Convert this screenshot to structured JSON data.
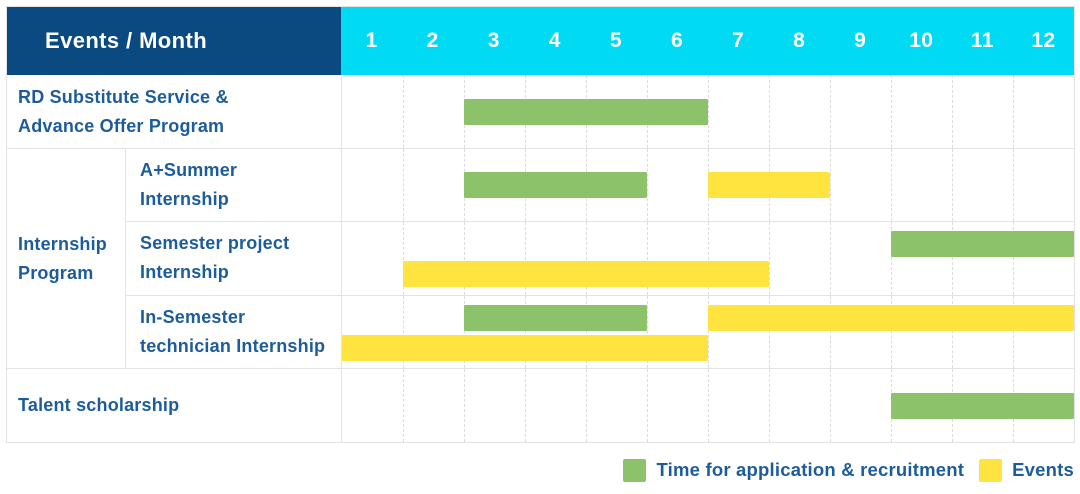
{
  "header": {
    "corner_label": "Events / Month",
    "months": [
      "1",
      "2",
      "3",
      "4",
      "5",
      "6",
      "7",
      "8",
      "9",
      "10",
      "11",
      "12"
    ]
  },
  "colors": {
    "navy": "#0B4A80",
    "cyan": "#00DAF2",
    "green": "#8CC36A",
    "yellow": "#FFE33E",
    "label_blue": "#1D5C9C",
    "grid": "#E3E3E3"
  },
  "group": {
    "label_lines": [
      "Internship",
      "Program"
    ]
  },
  "rows": [
    {
      "label_lines": [
        "RD Substitute Service &",
        "Advance Offer Program"
      ],
      "bars": [
        {
          "color": "green",
          "start": 3,
          "end": 6,
          "line": "center"
        }
      ]
    },
    {
      "label_lines": [
        "A+Summer",
        "Internship"
      ],
      "group": "Internship Program",
      "bars": [
        {
          "color": "green",
          "start": 3,
          "end": 5,
          "line": "center"
        },
        {
          "color": "yellow",
          "start": 7,
          "end": 8,
          "line": "center"
        }
      ]
    },
    {
      "label_lines": [
        "Semester project",
        "Internship"
      ],
      "group": "Internship Program",
      "bars": [
        {
          "color": "green",
          "start": 10,
          "end": 12,
          "line": "top"
        },
        {
          "color": "yellow",
          "start": 2,
          "end": 7,
          "line": "bottom"
        }
      ]
    },
    {
      "label_lines": [
        "In-Semester",
        "technician Internship"
      ],
      "group": "Internship Program",
      "bars": [
        {
          "color": "green",
          "start": 3,
          "end": 5,
          "line": "top"
        },
        {
          "color": "yellow",
          "start": 7,
          "end": 12,
          "line": "top"
        },
        {
          "color": "yellow",
          "start": 1,
          "end": 6,
          "line": "bottom"
        }
      ]
    },
    {
      "label_lines": [
        "Talent scholarship"
      ],
      "bars": [
        {
          "color": "green",
          "start": 10,
          "end": 12,
          "line": "center"
        }
      ]
    }
  ],
  "legend": [
    {
      "swatch": "green",
      "label": "Time for application & recruitment"
    },
    {
      "swatch": "yellow",
      "label": "Events"
    }
  ],
  "chart_data": {
    "type": "table",
    "title": "Events / Month",
    "columns": [
      "1",
      "2",
      "3",
      "4",
      "5",
      "6",
      "7",
      "8",
      "9",
      "10",
      "11",
      "12"
    ],
    "rows": [
      {
        "event": "RD Substitute Service & Advance Offer Program",
        "application_recruitment_month_ranges": [
          [
            3,
            6
          ]
        ],
        "events_month_ranges": []
      },
      {
        "event": "Internship Program - A+Summer Internship",
        "application_recruitment_month_ranges": [
          [
            3,
            5
          ]
        ],
        "events_month_ranges": [
          [
            7,
            8
          ]
        ]
      },
      {
        "event": "Internship Program - Semester project Internship",
        "application_recruitment_month_ranges": [
          [
            10,
            12
          ]
        ],
        "events_month_ranges": [
          [
            2,
            7
          ]
        ]
      },
      {
        "event": "Internship Program - In-Semester technician Internship",
        "application_recruitment_month_ranges": [
          [
            3,
            5
          ]
        ],
        "events_month_ranges": [
          [
            7,
            12
          ],
          [
            1,
            6
          ]
        ]
      },
      {
        "event": "Talent scholarship",
        "application_recruitment_month_ranges": [
          [
            10,
            12
          ]
        ],
        "events_month_ranges": []
      }
    ],
    "legend": [
      "Time for application & recruitment",
      "Events"
    ],
    "legend_position": "bottom-right",
    "grid": true
  }
}
